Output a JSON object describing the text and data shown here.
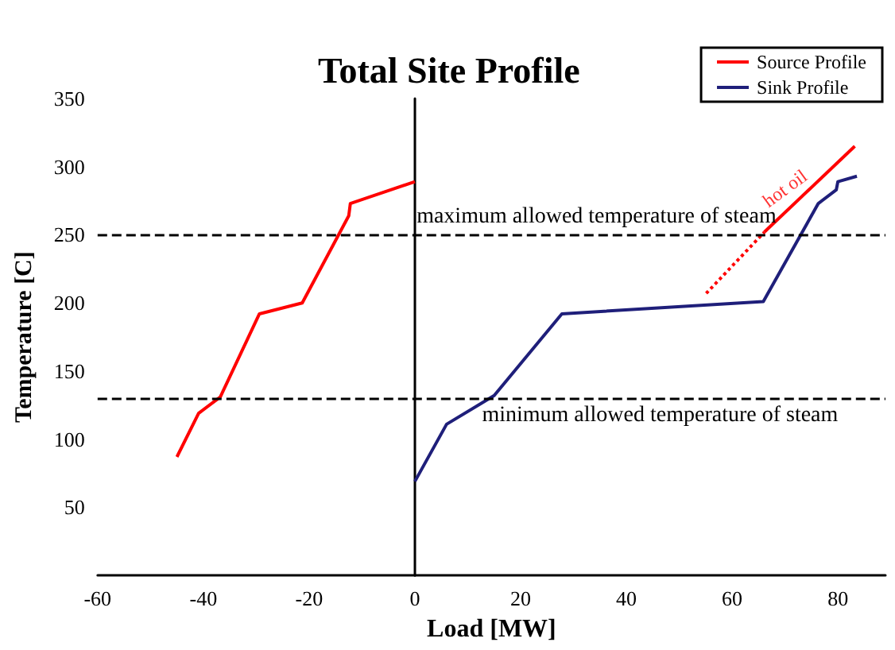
{
  "chart_data": {
    "type": "line",
    "title": "Total Site Profile",
    "xlabel": "Load [MW]",
    "ylabel": "Temperature [C]",
    "xlim": [
      -60,
      89
    ],
    "xticks": [
      -60,
      -40,
      -20,
      0,
      20,
      40,
      60,
      80
    ],
    "ylim": [
      0,
      350
    ],
    "yticks": [
      50,
      100,
      150,
      200,
      250,
      300,
      350
    ],
    "grid": false,
    "legend": "top right",
    "marker": "none",
    "line_style": "solid",
    "series": [
      {
        "name": "Source Profile",
        "color": "#ff0000",
        "x": [
          -45,
          -40.9,
          -36.8,
          -29.4,
          -21.3,
          -12.5,
          -12.2,
          0
        ],
        "values": [
          87,
          119,
          131,
          192,
          200,
          264,
          273,
          289
        ]
      },
      {
        "name": "Sink Profile",
        "color": "#1f1f7a",
        "x": [
          0,
          6,
          15,
          27.8,
          65.9,
          76.3,
          79.7,
          80,
          83.6
        ],
        "values": [
          69,
          111,
          132,
          192,
          201,
          273,
          283,
          289,
          293
        ]
      },
      {
        "color": "#ff0000",
        "x": [
          66.1,
          83.2
        ],
        "values": [
          252,
          315
        ]
      },
      {
        "color": "#ff0000",
        "line_style": "dotted",
        "x": [
          55.1,
          66.1
        ],
        "values": [
          207,
          252
        ]
      }
    ],
    "ref_lines": [
      {
        "axis": "y",
        "value": 250,
        "label": "maximum allowed temperature of steam",
        "color": "#000000",
        "line_style": "dashed"
      },
      {
        "axis": "y",
        "value": 130,
        "label": "minimum allowed temperature of steam",
        "color": "#000000",
        "line_style": "dashed"
      }
    ],
    "annotations": [
      {
        "text": "hot oil",
        "x": 72.5,
        "y": 275.6
      }
    ]
  }
}
